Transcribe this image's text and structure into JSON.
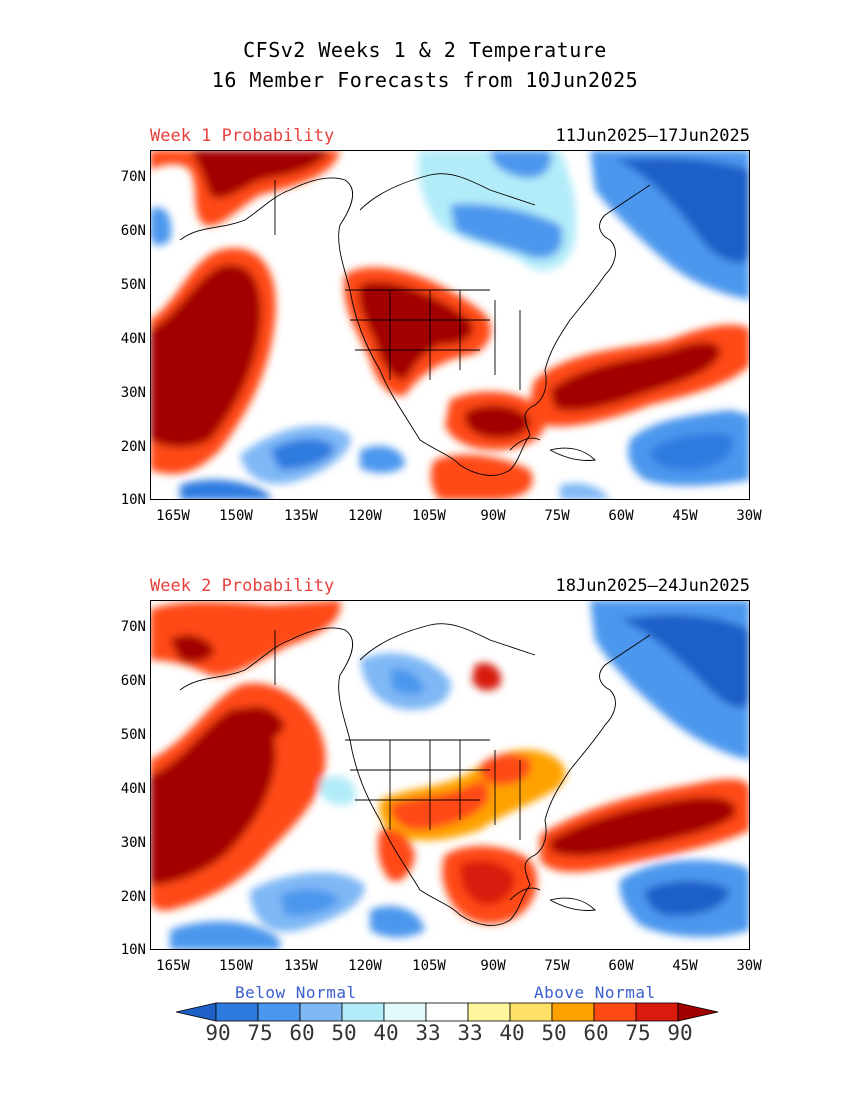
{
  "title_line1": "CFSv2 Weeks 1 & 2 Temperature",
  "title_line2": "16 Member Forecasts from 10Jun2025",
  "panels": [
    {
      "label": "Week 1 Probability",
      "dates": "11Jun2025—17Jun2025"
    },
    {
      "label": "Week 2 Probability",
      "dates": "18Jun2025—24Jun2025"
    }
  ],
  "lat_ticks": [
    "70N",
    "60N",
    "50N",
    "40N",
    "30N",
    "20N",
    "10N"
  ],
  "lon_ticks": [
    "165W",
    "150W",
    "135W",
    "120W",
    "105W",
    "90W",
    "75W",
    "60W",
    "45W",
    "30W"
  ],
  "legend": {
    "below_label": "Below Normal",
    "above_label": "Above Normal",
    "values": [
      "90",
      "75",
      "60",
      "50",
      "40",
      "33",
      "33",
      "40",
      "50",
      "60",
      "75",
      "90"
    ],
    "colors": [
      "#1f5fc8",
      "#2e7be0",
      "#4c97ee",
      "#7fb8f5",
      "#b2ecf9",
      "#e1fbfc",
      "#ffffff",
      "#fff59d",
      "#ffe066",
      "#ffa200",
      "#ff4a14",
      "#d81b0c",
      "#a10000"
    ]
  },
  "colors": {
    "ocean_neutral": "#ffffff",
    "above_strong": "#a10000",
    "below_strong": "#1f5fc8",
    "week_label": "#e8413c"
  }
}
